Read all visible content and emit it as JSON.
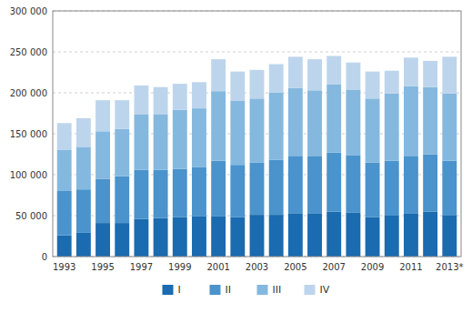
{
  "chart_data": {
    "type": "bar",
    "stacked": true,
    "categories": [
      "1993",
      null,
      "1995",
      null,
      "1997",
      null,
      "1999",
      null,
      "2001",
      null,
      "2003",
      null,
      "2005",
      null,
      "2007",
      null,
      "2009",
      null,
      "2011",
      null,
      "2013*"
    ],
    "series": [
      {
        "name": "I",
        "color": "#1a6baf",
        "values": [
          26000,
          29000,
          41000,
          41000,
          46000,
          47000,
          48000,
          49000,
          49000,
          48000,
          51000,
          51000,
          53000,
          53000,
          55000,
          54000,
          48000,
          50000,
          53000,
          55000,
          50000
        ]
      },
      {
        "name": "II",
        "color": "#4a93cc",
        "values": [
          54000,
          53000,
          54000,
          57000,
          60000,
          59000,
          59000,
          60000,
          68000,
          64000,
          64000,
          67000,
          70000,
          70000,
          72000,
          70000,
          67000,
          67000,
          70000,
          70000,
          67000
        ]
      },
      {
        "name": "III",
        "color": "#84b8df",
        "values": [
          50000,
          52000,
          58000,
          58000,
          68000,
          68000,
          72000,
          72000,
          85000,
          78000,
          78000,
          82000,
          83000,
          80000,
          83000,
          80000,
          78000,
          82000,
          85000,
          82000,
          82000
        ]
      },
      {
        "name": "IV",
        "color": "#bdd5ec",
        "values": [
          33000,
          35000,
          38000,
          35000,
          35000,
          33000,
          32000,
          32000,
          39000,
          36000,
          35000,
          35000,
          38000,
          38000,
          35000,
          33000,
          33000,
          28000,
          35000,
          32000,
          45000
        ]
      }
    ],
    "ylim": [
      0,
      300000
    ],
    "yticks": [
      0,
      {
        "value": 50000,
        "label": "50 000"
      },
      {
        "value": 100000,
        "label": "100 000"
      },
      {
        "value": 150000,
        "label": "150 000"
      },
      {
        "value": 200000,
        "label": "200 000"
      },
      {
        "value": 250000,
        "label": "250 000"
      },
      {
        "value": 300000,
        "label": "300 000"
      }
    ],
    "grid": true,
    "legend": "bottom"
  }
}
